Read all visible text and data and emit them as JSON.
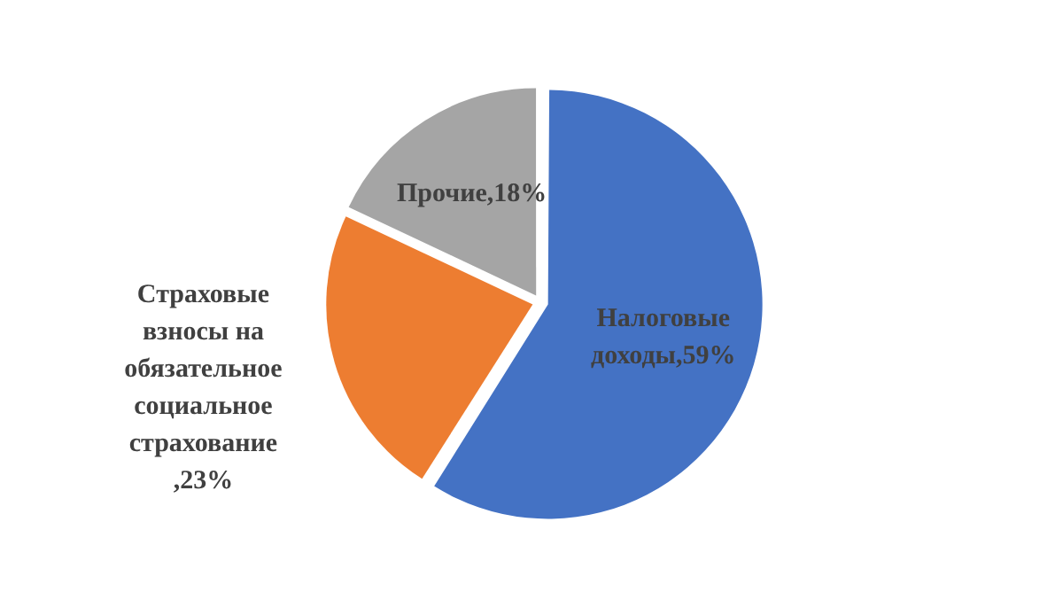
{
  "chart_data": {
    "type": "pie",
    "categories": [
      "Налоговые доходы",
      "Страховые взносы на обязательное социальное страхование",
      "Прочие"
    ],
    "values": [
      59,
      23,
      18
    ],
    "colors": [
      "#4472c4",
      "#ed7d31",
      "#a5a5a5"
    ],
    "value_labels": [
      ",59%",
      ",23%",
      ",18%"
    ],
    "legend": false
  }
}
